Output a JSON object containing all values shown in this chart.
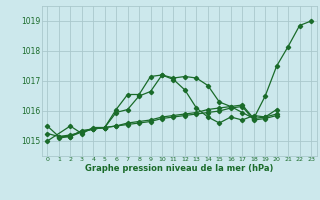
{
  "xlabel": "Graphe pression niveau de la mer (hPa)",
  "background_color": "#cce8ec",
  "grid_color": "#aac8cc",
  "line_color": "#1a6b2a",
  "ylim": [
    1014.5,
    1019.5
  ],
  "yticks": [
    1015,
    1016,
    1017,
    1018,
    1019
  ],
  "xlim": [
    -0.5,
    23.5
  ],
  "x_ticks": [
    0,
    1,
    2,
    3,
    4,
    5,
    6,
    7,
    8,
    9,
    10,
    11,
    12,
    13,
    14,
    15,
    16,
    17,
    18,
    19,
    20,
    21,
    22,
    23
  ],
  "series": [
    [
      1015.0,
      null,
      1015.5,
      1015.25,
      1015.45,
      1015.45,
      1015.95,
      1016.05,
      1016.5,
      1016.65,
      1017.2,
      1017.1,
      1017.15,
      1017.1,
      1016.85,
      1016.3,
      1016.15,
      1015.95,
      1015.75,
      1016.5,
      1017.5,
      1018.15,
      1018.85,
      1019.0
    ],
    [
      null,
      1015.1,
      1015.15,
      1015.35,
      1015.4,
      1015.45,
      1016.05,
      1016.55,
      1016.55,
      1017.15,
      1017.2,
      1017.05,
      1016.7,
      1016.1,
      1015.8,
      1015.6,
      1015.8,
      1015.7,
      1015.85,
      1015.8,
      1016.05,
      null,
      null,
      null
    ],
    [
      1015.25,
      1015.15,
      1015.2,
      1015.3,
      1015.4,
      1015.45,
      1015.5,
      1015.6,
      1015.65,
      1015.7,
      1015.8,
      1015.85,
      1015.9,
      1015.95,
      1016.05,
      1016.1,
      1016.15,
      1016.2,
      1015.75,
      1015.8,
      1015.9,
      null,
      null,
      null
    ],
    [
      1015.5,
      1015.15,
      1015.15,
      1015.3,
      1015.4,
      1015.45,
      1015.5,
      1015.55,
      1015.6,
      1015.65,
      1015.75,
      1015.8,
      1015.85,
      1015.9,
      1015.95,
      1016.0,
      1016.1,
      1016.15,
      1015.7,
      1015.75,
      1015.85,
      null,
      null,
      null
    ]
  ]
}
